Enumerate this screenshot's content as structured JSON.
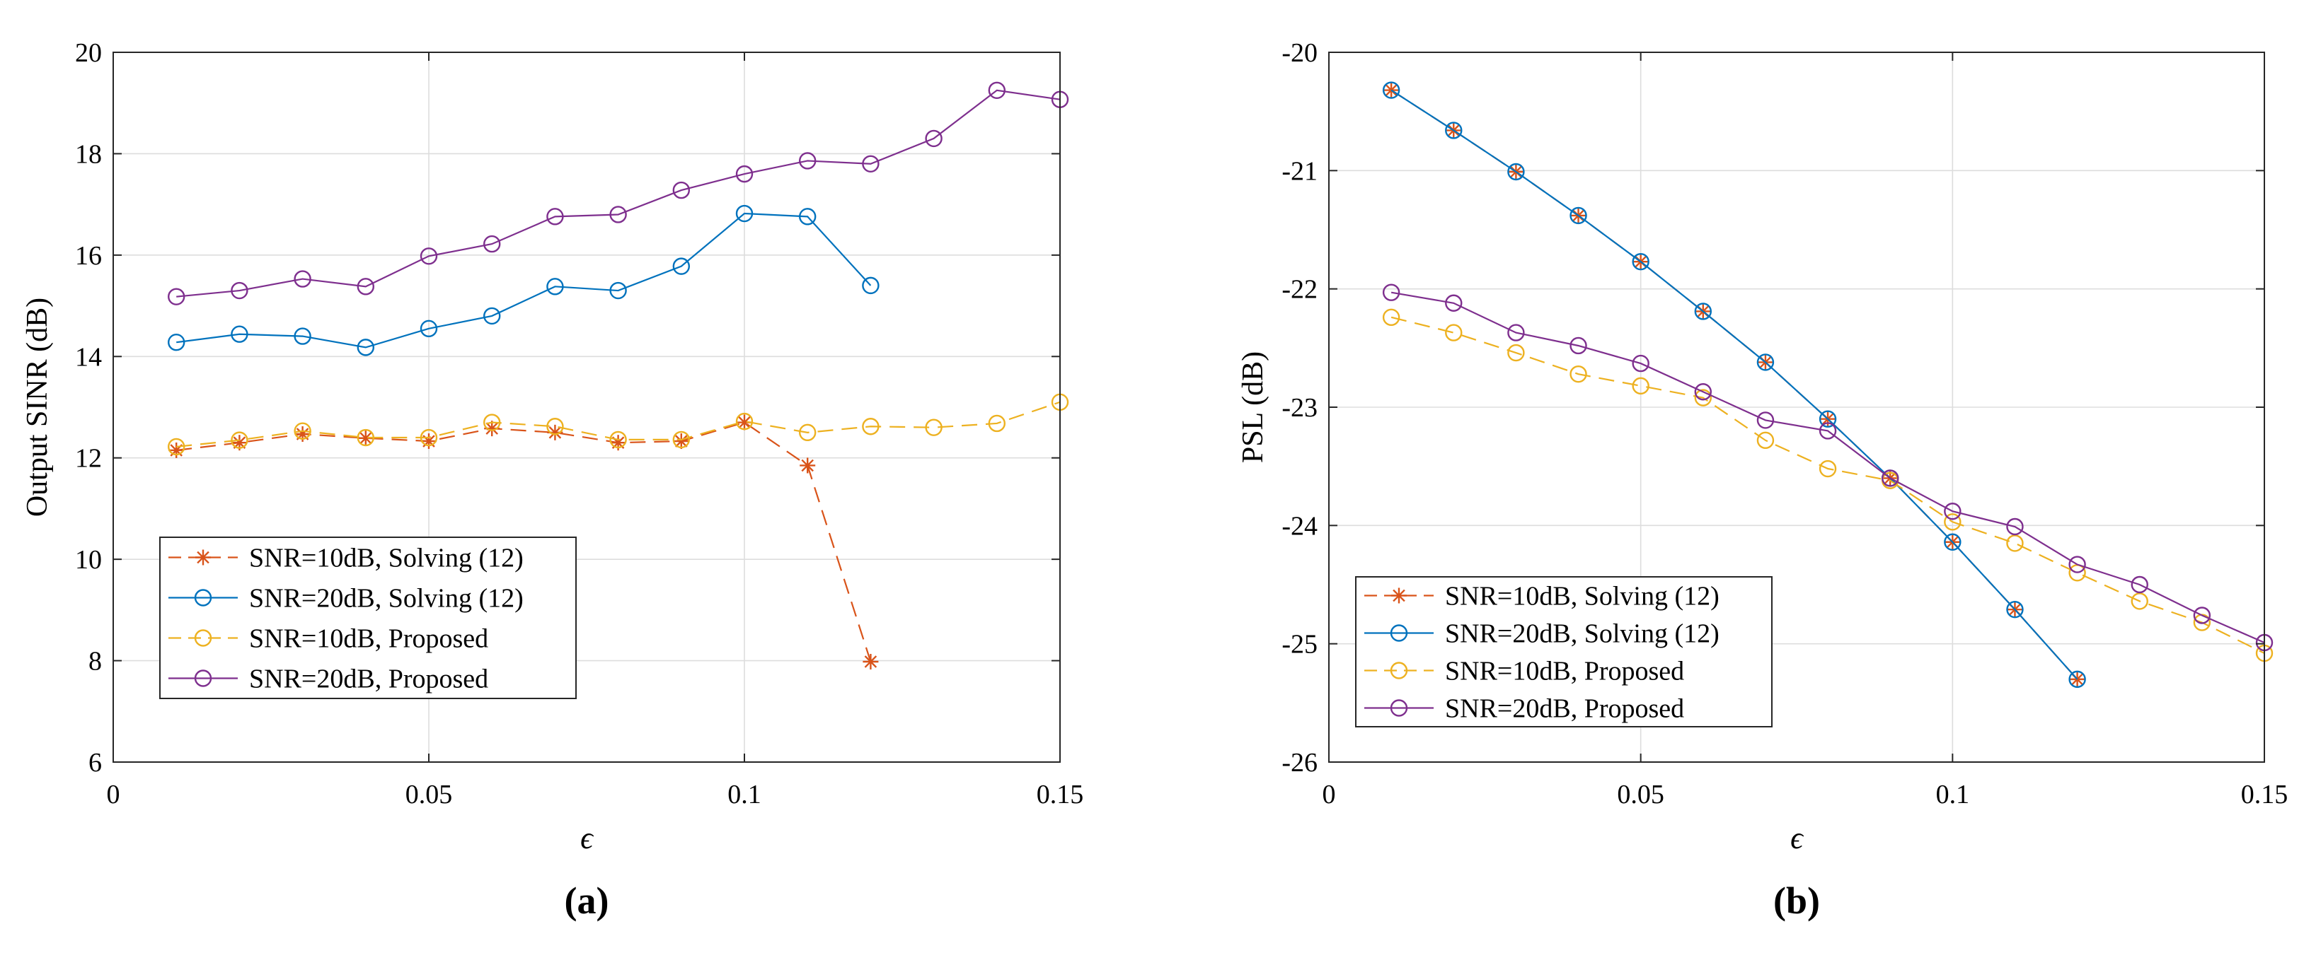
{
  "chart_data": [
    {
      "type": "line",
      "panel_label": "(a)",
      "xlabel": "ϵ",
      "ylabel": "Output SINR (dB)",
      "xlim": [
        0,
        0.15
      ],
      "ylim": [
        6,
        20
      ],
      "xticks": [
        0,
        0.05,
        0.1,
        0.15
      ],
      "xtick_labels": [
        "0",
        "0.05",
        "0.1",
        "0.15"
      ],
      "yticks": [
        6,
        8,
        10,
        12,
        14,
        16,
        18,
        20
      ],
      "ytick_labels": [
        "6",
        "8",
        "10",
        "12",
        "14",
        "16",
        "18",
        "20"
      ],
      "grid": true,
      "legend_position": "lower-left",
      "series": [
        {
          "name": "SNR=10dB, Solving (12)",
          "color": "#D95319",
          "marker": "star",
          "dash": "dashed",
          "x": [
            0.01,
            0.02,
            0.03,
            0.04,
            0.05,
            0.06,
            0.07,
            0.08,
            0.09,
            0.1,
            0.11,
            0.12
          ],
          "y": [
            12.15,
            12.3,
            12.47,
            12.39,
            12.33,
            12.58,
            12.5,
            12.3,
            12.33,
            12.7,
            11.85,
            7.98
          ]
        },
        {
          "name": "SNR=20dB, Solving (12)",
          "color": "#0072BD",
          "marker": "circle",
          "dash": "solid",
          "x": [
            0.01,
            0.02,
            0.03,
            0.04,
            0.05,
            0.06,
            0.07,
            0.08,
            0.09,
            0.1,
            0.11,
            0.12
          ],
          "y": [
            14.28,
            14.44,
            14.4,
            14.18,
            14.55,
            14.8,
            15.38,
            15.3,
            15.78,
            16.82,
            16.76,
            15.4
          ]
        },
        {
          "name": "SNR=10dB, Proposed",
          "color": "#EDB120",
          "marker": "circle",
          "dash": "dashed",
          "x": [
            0.01,
            0.02,
            0.03,
            0.04,
            0.05,
            0.06,
            0.07,
            0.08,
            0.09,
            0.1,
            0.11,
            0.12,
            0.13,
            0.14,
            0.15
          ],
          "y": [
            12.22,
            12.35,
            12.53,
            12.4,
            12.4,
            12.7,
            12.62,
            12.36,
            12.36,
            12.72,
            12.5,
            12.62,
            12.6,
            12.68,
            13.1
          ]
        },
        {
          "name": "SNR=20dB, Proposed",
          "color": "#7E2F8E",
          "marker": "circle",
          "dash": "solid",
          "x": [
            0.01,
            0.02,
            0.03,
            0.04,
            0.05,
            0.06,
            0.07,
            0.08,
            0.09,
            0.1,
            0.11,
            0.12,
            0.13,
            0.14,
            0.15
          ],
          "y": [
            15.18,
            15.3,
            15.53,
            15.38,
            15.98,
            16.22,
            16.76,
            16.8,
            17.28,
            17.6,
            17.86,
            17.8,
            18.3,
            19.25,
            19.07
          ]
        }
      ]
    },
    {
      "type": "line",
      "panel_label": "(b)",
      "xlabel": "ϵ",
      "ylabel": "PSL (dB)",
      "xlim": [
        0,
        0.15
      ],
      "ylim": [
        -26,
        -20
      ],
      "xticks": [
        0,
        0.05,
        0.1,
        0.15
      ],
      "xtick_labels": [
        "0",
        "0.05",
        "0.1",
        "0.15"
      ],
      "yticks": [
        -26,
        -25,
        -24,
        -23,
        -22,
        -21,
        -20
      ],
      "ytick_labels": [
        "-26",
        "-25",
        "-24",
        "-23",
        "-22",
        "-21",
        "-20"
      ],
      "grid": true,
      "legend_position": "lower-left",
      "series": [
        {
          "name": "SNR=10dB, Solving (12)",
          "color": "#D95319",
          "marker": "star",
          "dash": "dashed",
          "x": [
            0.01,
            0.02,
            0.03,
            0.04,
            0.05,
            0.06,
            0.07,
            0.08,
            0.09,
            0.1,
            0.11,
            0.12
          ],
          "y": [
            -20.32,
            -20.66,
            -21.01,
            -21.38,
            -21.77,
            -22.19,
            -22.62,
            -23.1,
            -23.6,
            -24.14,
            -24.71,
            -25.3
          ]
        },
        {
          "name": "SNR=20dB, Solving (12)",
          "color": "#0072BD",
          "marker": "circle",
          "dash": "solid",
          "x": [
            0.01,
            0.02,
            0.03,
            0.04,
            0.05,
            0.06,
            0.07,
            0.08,
            0.09,
            0.1,
            0.11,
            0.12
          ],
          "y": [
            -20.32,
            -20.66,
            -21.01,
            -21.38,
            -21.77,
            -22.19,
            -22.62,
            -23.1,
            -23.6,
            -24.14,
            -24.71,
            -25.3
          ]
        },
        {
          "name": "SNR=10dB, Proposed",
          "color": "#EDB120",
          "marker": "circle",
          "dash": "dashed",
          "x": [
            0.01,
            0.02,
            0.03,
            0.04,
            0.05,
            0.06,
            0.07,
            0.08,
            0.09,
            0.1,
            0.11,
            0.12,
            0.13,
            0.14,
            0.15
          ],
          "y": [
            -22.24,
            -22.37,
            -22.54,
            -22.72,
            -22.82,
            -22.92,
            -23.28,
            -23.52,
            -23.62,
            -23.97,
            -24.15,
            -24.4,
            -24.64,
            -24.82,
            -25.08
          ]
        },
        {
          "name": "SNR=20dB, Proposed",
          "color": "#7E2F8E",
          "marker": "circle",
          "dash": "solid",
          "x": [
            0.01,
            0.02,
            0.03,
            0.04,
            0.05,
            0.06,
            0.07,
            0.08,
            0.09,
            0.1,
            0.11,
            0.12,
            0.13,
            0.14,
            0.15
          ],
          "y": [
            -22.03,
            -22.12,
            -22.37,
            -22.48,
            -22.63,
            -22.87,
            -23.11,
            -23.2,
            -23.6,
            -23.88,
            -24.01,
            -24.33,
            -24.5,
            -24.76,
            -24.99
          ]
        }
      ]
    }
  ]
}
